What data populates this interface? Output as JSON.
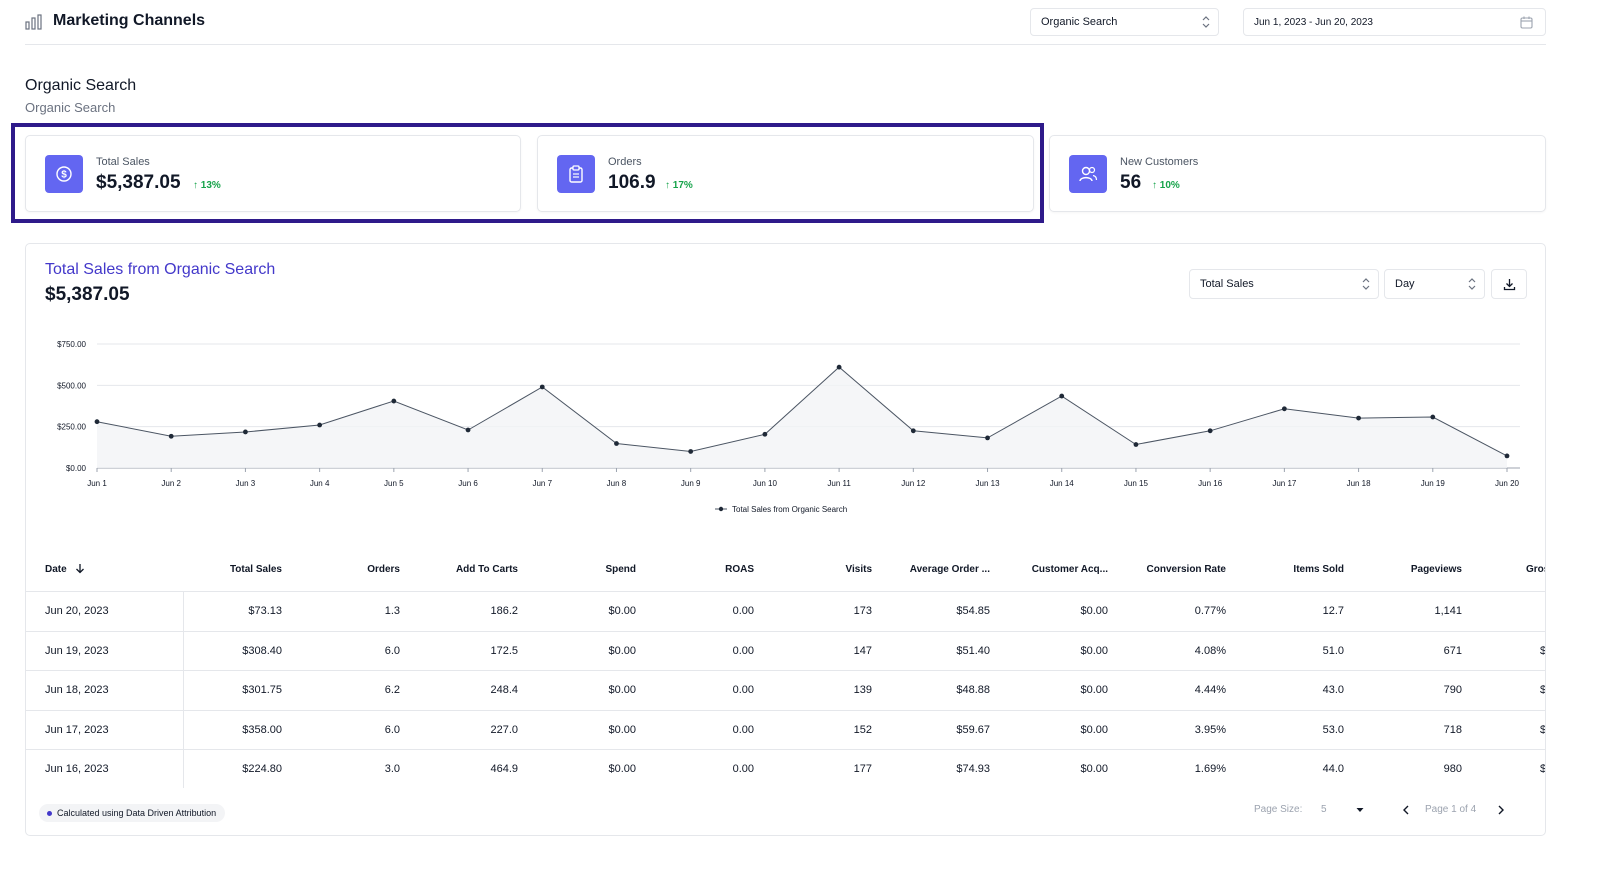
{
  "header": {
    "title": "Marketing Channels",
    "channel_select": "Organic Search",
    "date_range": "Jun 1, 2023 - Jun 20, 2023"
  },
  "section": {
    "title": "Organic Search",
    "subtitle": "Organic Search"
  },
  "kpis": [
    {
      "label": "Total Sales",
      "value": "$5,387.05",
      "delta": "13%",
      "icon": "dollar-icon"
    },
    {
      "label": "Orders",
      "value": "106.9",
      "delta": "17%",
      "icon": "clipboard-icon"
    },
    {
      "label": "New Customers",
      "value": "56",
      "delta": "10%",
      "icon": "users-icon"
    }
  ],
  "chart_card": {
    "title": "Total Sales from Organic Search",
    "value": "$5,387.05",
    "metric_select": "Total Sales",
    "interval_select": "Day"
  },
  "chart_data": {
    "type": "line",
    "x": [
      "Jun 1",
      "Jun 2",
      "Jun 3",
      "Jun 4",
      "Jun 5",
      "Jun 6",
      "Jun 7",
      "Jun 8",
      "Jun 9",
      "Jun 10",
      "Jun 11",
      "Jun 12",
      "Jun 13",
      "Jun 14",
      "Jun 15",
      "Jun 16",
      "Jun 17",
      "Jun 18",
      "Jun 19",
      "Jun 20"
    ],
    "series": [
      {
        "name": "Total Sales from Organic Search",
        "values": [
          280,
          192,
          218,
          260,
          405,
          230,
          490,
          148,
          100,
          204,
          610,
          225,
          182,
          435,
          142,
          224.8,
          358,
          301.75,
          308.4,
          73.13
        ]
      }
    ],
    "yticks": [
      "$0.00",
      "$250.00",
      "$500.00",
      "$750.00"
    ],
    "ylim": [
      0,
      750
    ],
    "legend": "bottom-center",
    "grid": true,
    "colors": {
      "line": "#4b5563",
      "fill": "#f3f4f6"
    }
  },
  "table": {
    "columns": [
      "Date",
      "Total Sales",
      "Orders",
      "Add To Carts",
      "Spend",
      "ROAS",
      "Visits",
      "Average Order ...",
      "Customer Acq...",
      "Conversion Rate",
      "Items Sold",
      "Pageviews",
      "Gros"
    ],
    "rows": [
      [
        "Jun 20, 2023",
        "$73.13",
        "1.3",
        "186.2",
        "$0.00",
        "0.00",
        "173",
        "$54.85",
        "$0.00",
        "0.77%",
        "12.7",
        "1,141",
        ""
      ],
      [
        "Jun 19, 2023",
        "$308.40",
        "6.0",
        "172.5",
        "$0.00",
        "0.00",
        "147",
        "$51.40",
        "$0.00",
        "4.08%",
        "51.0",
        "671",
        "$"
      ],
      [
        "Jun 18, 2023",
        "$301.75",
        "6.2",
        "248.4",
        "$0.00",
        "0.00",
        "139",
        "$48.88",
        "$0.00",
        "4.44%",
        "43.0",
        "790",
        "$"
      ],
      [
        "Jun 17, 2023",
        "$358.00",
        "6.0",
        "227.0",
        "$0.00",
        "0.00",
        "152",
        "$59.67",
        "$0.00",
        "3.95%",
        "53.0",
        "718",
        "$"
      ],
      [
        "Jun 16, 2023",
        "$224.80",
        "3.0",
        "464.9",
        "$0.00",
        "0.00",
        "177",
        "$74.93",
        "$0.00",
        "1.69%",
        "44.0",
        "980",
        "$"
      ]
    ]
  },
  "footer": {
    "attribution": "Calculated using Data Driven Attribution",
    "page_size_label": "Page Size:",
    "page_size": "5",
    "page_info": "Page 1 of 4"
  }
}
